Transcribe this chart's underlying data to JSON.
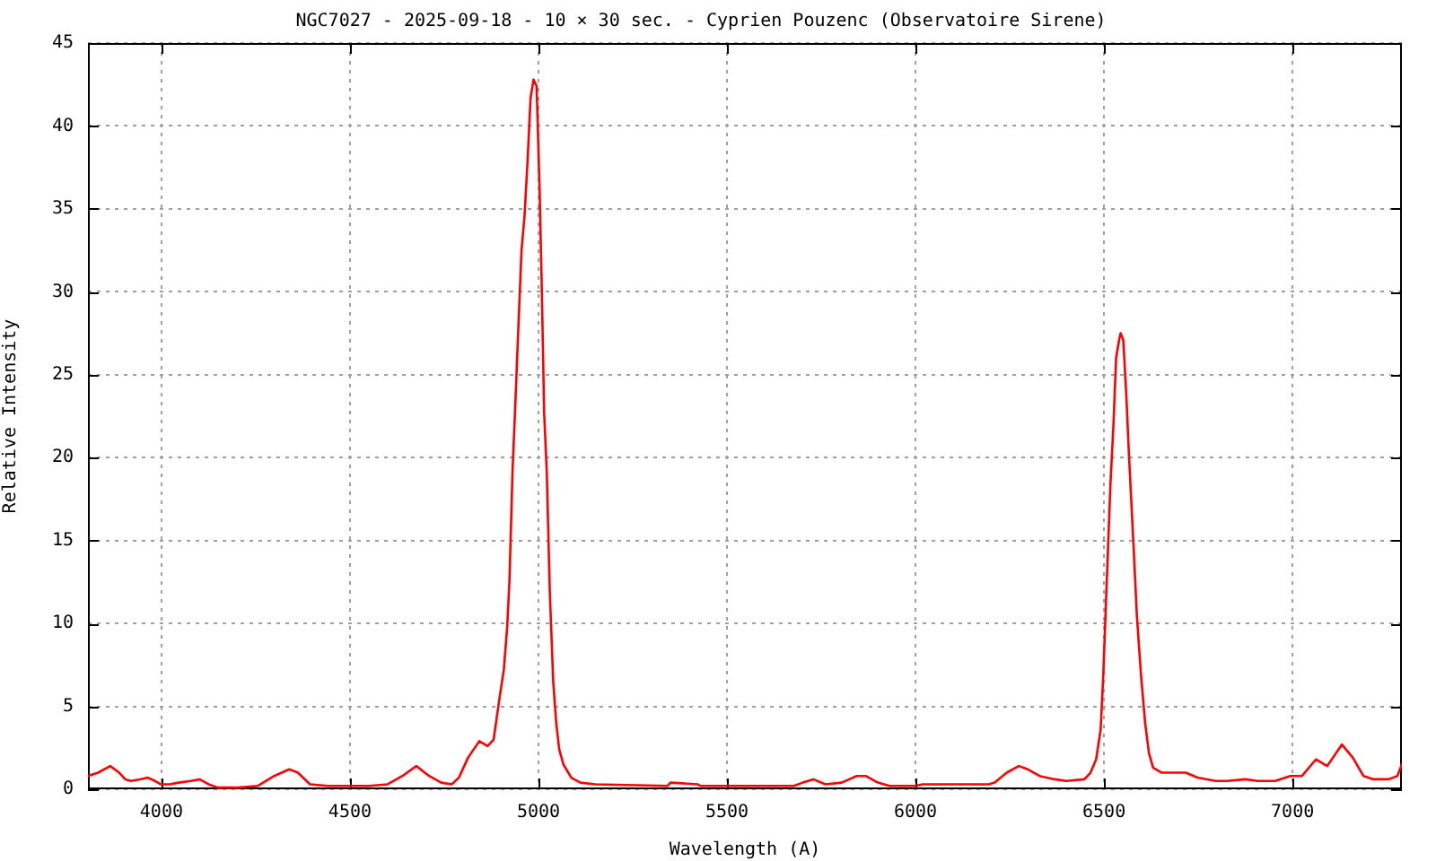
{
  "chart_data": {
    "type": "line",
    "title": "NGC7027 - 2025-09-18 - 10 × 30 sec. - Cyprien Pouzenc (Observatoire Sirene)",
    "xlabel": "Wavelength (A)",
    "ylabel": "Relative Intensity",
    "x": [
      3805,
      3832,
      3864,
      3888,
      3904,
      3919,
      3943,
      3964,
      3983,
      3998,
      4022,
      4046,
      4078,
      4101,
      4125,
      4149,
      4204,
      4255,
      4299,
      4339,
      4362,
      4394,
      4441,
      4505,
      4552,
      4600,
      4639,
      4676,
      4710,
      4742,
      4770,
      4789,
      4813,
      4843,
      4865,
      4881,
      4896,
      4908,
      4917,
      4923,
      4931,
      4939,
      4947,
      4955,
      4963,
      4971,
      4979,
      4987,
      4995,
      5003,
      5009,
      5015,
      5022,
      5030,
      5039,
      5047,
      5055,
      5066,
      5087,
      5111,
      5151,
      5342,
      5350,
      5422,
      5430,
      5677,
      5701,
      5729,
      5761,
      5804,
      5844,
      5868,
      5900,
      5931,
      5987,
      6000,
      6019,
      6194,
      6210,
      6242,
      6274,
      6298,
      6329,
      6369,
      6400,
      6448,
      6464,
      6479,
      6491,
      6498,
      6505,
      6511,
      6517,
      6525,
      6532,
      6540,
      6544,
      6551,
      6559,
      6566,
      6578,
      6587,
      6598,
      6609,
      6619,
      6630,
      6653,
      6717,
      6748,
      6796,
      6827,
      6875,
      6907,
      6954,
      6994,
      7025,
      7062,
      7092,
      7131,
      7160,
      7188,
      7215,
      7255,
      7278,
      7290
    ],
    "series": [
      {
        "color": "#ff0000",
        "values": [
          0.8,
          1.0,
          1.4,
          1.0,
          0.6,
          0.5,
          0.6,
          0.7,
          0.5,
          0.3,
          0.3,
          0.4,
          0.5,
          0.6,
          0.3,
          0.1,
          0.1,
          0.2,
          0.8,
          1.2,
          1.0,
          0.3,
          0.2,
          0.2,
          0.2,
          0.3,
          0.8,
          1.4,
          0.8,
          0.4,
          0.3,
          0.7,
          1.9,
          2.9,
          2.6,
          3.0,
          5.4,
          7.2,
          9.8,
          12.6,
          19.1,
          23.5,
          28.1,
          32.5,
          34.6,
          37.9,
          41.7,
          42.8,
          42.4,
          36.1,
          29.9,
          22.7,
          19.1,
          11.9,
          6.5,
          4.0,
          2.4,
          1.5,
          0.7,
          0.4,
          0.3,
          0.2,
          0.4,
          0.3,
          0.2,
          0.2,
          0.4,
          0.6,
          0.3,
          0.4,
          0.8,
          0.8,
          0.4,
          0.2,
          0.2,
          0.2,
          0.3,
          0.3,
          0.4,
          1.0,
          1.4,
          1.2,
          0.8,
          0.6,
          0.5,
          0.6,
          1.0,
          1.8,
          3.6,
          6.9,
          11.2,
          14.8,
          18.4,
          22.0,
          26.0,
          27.1,
          27.5,
          27.1,
          23.8,
          20.2,
          14.8,
          10.5,
          6.9,
          4.0,
          2.2,
          1.3,
          1.0,
          1.0,
          0.7,
          0.5,
          0.5,
          0.6,
          0.5,
          0.5,
          0.8,
          0.8,
          1.8,
          1.4,
          2.7,
          1.9,
          0.8,
          0.6,
          0.6,
          0.8,
          1.5
        ]
      }
    ],
    "xlim": [
      3805,
      7290
    ],
    "ylim": [
      0,
      45
    ],
    "xticks": [
      4000,
      4500,
      5000,
      5500,
      6000,
      6500,
      7000
    ],
    "yticks": [
      0,
      5,
      10,
      15,
      20,
      25,
      30,
      35,
      40,
      45
    ],
    "grid": true,
    "legend": false,
    "marker": "none",
    "line_style": "solid"
  }
}
